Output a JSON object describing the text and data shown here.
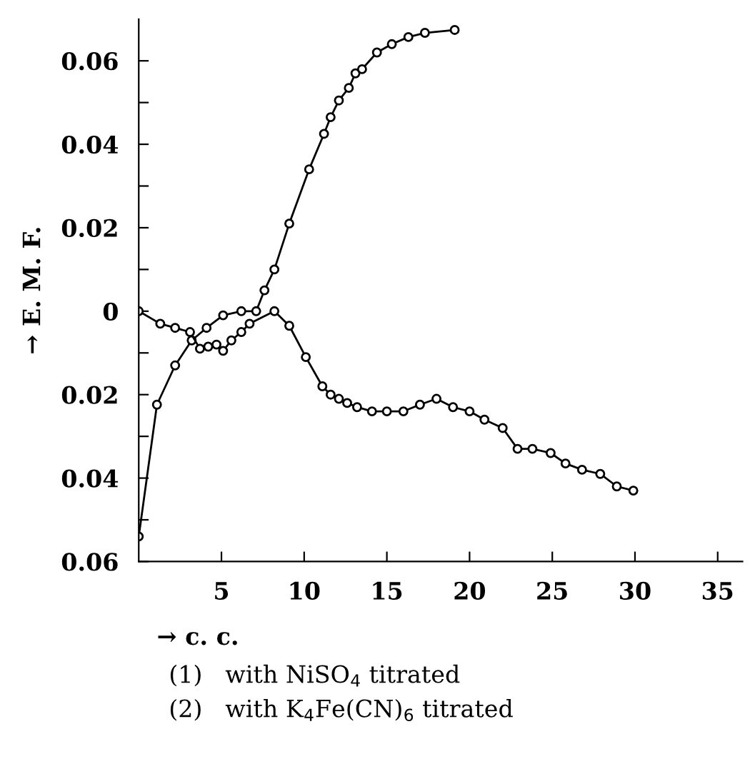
{
  "chart_data": {
    "type": "line",
    "xlabel": "→ c. c.",
    "ylabel": "→ E. M. F.",
    "xlim": [
      0,
      36.5
    ],
    "ylim": [
      -0.06,
      0.07
    ],
    "xticks": [
      5,
      10,
      15,
      20,
      25,
      30,
      35
    ],
    "yticks": [
      0.06,
      {
        "value": 0.05,
        "label": null
      },
      0.04,
      {
        "value": 0.03,
        "label": null
      },
      0.02,
      {
        "value": 0.01,
        "label": null
      },
      0,
      {
        "value": -0.01,
        "label": null
      },
      {
        "value": -0.02,
        "label": "0.02"
      },
      {
        "value": -0.03,
        "label": null
      },
      {
        "value": -0.04,
        "label": "0.04"
      },
      {
        "value": -0.05,
        "label": null
      },
      {
        "value": -0.06,
        "label": "0.06"
      }
    ],
    "marker": "circle",
    "line_style": "solid",
    "grid": false,
    "legend": false,
    "series": [
      {
        "color": "#000000",
        "x": [
          0,
          1.1,
          2.2,
          3.2,
          4.1,
          5.1,
          6.2,
          7.1,
          7.6,
          8.2,
          9.1,
          10.3,
          11.2,
          11.6,
          12.1,
          12.7,
          13.1,
          13.5,
          14.4,
          15.3,
          16.3,
          17.3,
          19.1
        ],
        "values": [
          -0.054,
          -0.0224,
          -0.013,
          -0.007,
          -0.004,
          -0.001,
          0,
          0,
          0.005,
          0.01,
          0.021,
          0.034,
          0.0425,
          0.0465,
          0.0505,
          0.0535,
          0.057,
          0.058,
          0.062,
          0.064,
          0.0657,
          0.0667,
          0.0674
        ]
      },
      {
        "color": "#000000",
        "x": [
          0,
          1.3,
          2.2,
          3.1,
          3.7,
          4.2,
          4.7,
          5.1,
          5.6,
          6.2,
          6.7,
          8.2,
          9.1,
          10.1,
          11.1,
          11.6,
          12.1,
          12.6,
          13.2,
          14.1,
          15.0,
          16.0,
          17.0,
          18.0,
          19.0,
          20.0,
          20.9,
          22.0,
          22.9,
          23.8,
          24.9,
          25.8,
          26.8,
          27.9,
          28.9,
          29.9
        ],
        "values": [
          0,
          -0.003,
          -0.004,
          -0.005,
          -0.009,
          -0.0085,
          -0.008,
          -0.0095,
          -0.007,
          -0.005,
          -0.003,
          0,
          -0.0035,
          -0.011,
          -0.018,
          -0.02,
          -0.021,
          -0.022,
          -0.023,
          -0.024,
          -0.024,
          -0.024,
          -0.0224,
          -0.021,
          -0.023,
          -0.024,
          -0.026,
          -0.028,
          -0.033,
          -0.033,
          -0.034,
          -0.0365,
          -0.038,
          -0.039,
          -0.042,
          -0.043
        ]
      }
    ],
    "annotations": [
      "(1)   with NiSO$_{4}$ titrated",
      "(2)   with K$_{4}$Fe(CN)$_{6}$ titrated"
    ]
  }
}
